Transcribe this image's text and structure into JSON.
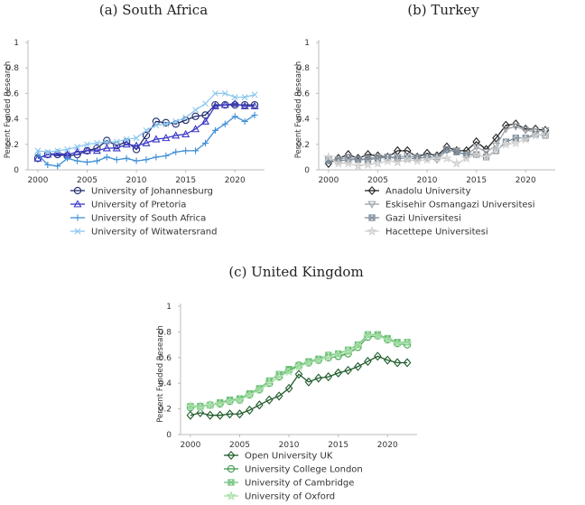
{
  "chart_data": [
    {
      "type": "line",
      "title": "(a) South Africa",
      "xlabel": "",
      "ylabel": "Percent Funded Research",
      "xlim": [
        1999,
        2023
      ],
      "ylim": [
        0,
        1
      ],
      "x_ticks": [
        2000,
        2005,
        2010,
        2015,
        2020
      ],
      "y_ticks": [
        0,
        0.2,
        0.4,
        0.6,
        0.8,
        1
      ],
      "y_tick_labels": [
        "0",
        "0.2",
        "0.4",
        "0.6",
        "0.8",
        "1"
      ],
      "grid": false,
      "legend": "bottom",
      "x": [
        2000,
        2001,
        2002,
        2003,
        2004,
        2005,
        2006,
        2007,
        2008,
        2009,
        2010,
        2011,
        2012,
        2013,
        2014,
        2015,
        2016,
        2017,
        2018,
        2019,
        2020,
        2021,
        2022
      ],
      "series": [
        {
          "name": "University of Johannesburg",
          "color": "#1f2a6b",
          "marker": "circle",
          "values": [
            0.09,
            0.12,
            0.12,
            0.11,
            0.12,
            0.15,
            0.17,
            0.23,
            0.19,
            0.22,
            0.16,
            0.27,
            0.38,
            0.37,
            0.36,
            0.39,
            0.42,
            0.43,
            0.51,
            0.51,
            0.51,
            0.51,
            0.51
          ]
        },
        {
          "name": "University of Pretoria",
          "color": "#3b38c8",
          "marker": "triangle",
          "values": [
            0.09,
            0.12,
            0.13,
            0.12,
            0.14,
            0.15,
            0.15,
            0.17,
            0.17,
            0.2,
            0.19,
            0.21,
            0.24,
            0.25,
            0.27,
            0.28,
            0.32,
            0.38,
            0.5,
            0.51,
            0.52,
            0.5,
            0.5
          ]
        },
        {
          "name": "University of South Africa",
          "color": "#3f8fd6",
          "marker": "plus",
          "values": [
            0.12,
            0.04,
            0.03,
            0.09,
            0.07,
            0.06,
            0.07,
            0.1,
            0.08,
            0.09,
            0.07,
            0.08,
            0.1,
            0.11,
            0.14,
            0.15,
            0.15,
            0.21,
            0.31,
            0.36,
            0.42,
            0.38,
            0.43
          ]
        },
        {
          "name": "University of Witwatersrand",
          "color": "#8cc7ee",
          "marker": "x",
          "values": [
            0.15,
            0.14,
            0.15,
            0.16,
            0.18,
            0.2,
            0.21,
            0.22,
            0.22,
            0.24,
            0.25,
            0.31,
            0.35,
            0.36,
            0.38,
            0.41,
            0.47,
            0.52,
            0.6,
            0.6,
            0.57,
            0.57,
            0.59
          ]
        }
      ]
    },
    {
      "type": "line",
      "title": "(b) Turkey",
      "xlabel": "",
      "ylabel": "Percent Funded Research",
      "xlim": [
        1999,
        2023
      ],
      "ylim": [
        0,
        1
      ],
      "x_ticks": [
        2000,
        2005,
        2010,
        2015,
        2020
      ],
      "y_ticks": [
        0,
        0.2,
        0.4,
        0.6,
        0.8,
        1
      ],
      "y_tick_labels": [
        "0",
        "0.2",
        "0.4",
        "0.6",
        "0.8",
        "1"
      ],
      "grid": false,
      "legend": "bottom",
      "x": [
        2000,
        2001,
        2002,
        2003,
        2004,
        2005,
        2006,
        2007,
        2008,
        2009,
        2010,
        2011,
        2012,
        2013,
        2014,
        2015,
        2016,
        2017,
        2018,
        2019,
        2020,
        2021,
        2022
      ],
      "series": [
        {
          "name": "Anadolu University",
          "color": "#222222",
          "marker": "diamond",
          "values": [
            0.05,
            0.09,
            0.12,
            0.09,
            0.12,
            0.11,
            0.1,
            0.15,
            0.15,
            0.1,
            0.13,
            0.11,
            0.18,
            0.15,
            0.15,
            0.22,
            0.16,
            0.25,
            0.35,
            0.36,
            0.32,
            0.32,
            0.31
          ]
        },
        {
          "name": "Eskisehir Osmangazi Universitesi",
          "color": "#9aa0a6",
          "marker": "triangle-down",
          "values": [
            0.08,
            0.08,
            0.1,
            0.08,
            0.09,
            0.1,
            0.1,
            0.1,
            0.11,
            0.1,
            0.09,
            0.08,
            0.15,
            0.15,
            0.11,
            0.18,
            0.14,
            0.19,
            0.32,
            0.34,
            0.31,
            0.3,
            0.31
          ]
        },
        {
          "name": "Gazi Universitesi",
          "color": "#7d8c99",
          "marker": "square-x",
          "values": [
            0.07,
            0.07,
            0.08,
            0.08,
            0.08,
            0.09,
            0.1,
            0.09,
            0.09,
            0.09,
            0.1,
            0.1,
            0.16,
            0.14,
            0.12,
            0.12,
            0.1,
            0.15,
            0.22,
            0.25,
            0.25,
            0.28,
            0.27
          ]
        },
        {
          "name": "Hacettepe Universitesi",
          "color": "#cfcfcf",
          "marker": "star",
          "values": [
            0.1,
            0.05,
            0.05,
            0.03,
            0.04,
            0.05,
            0.07,
            0.06,
            0.08,
            0.07,
            0.08,
            0.09,
            0.09,
            0.05,
            0.09,
            0.12,
            0.1,
            0.16,
            0.2,
            0.21,
            0.24,
            0.27,
            0.28
          ]
        }
      ]
    },
    {
      "type": "line",
      "title": "(c) United Kingdom",
      "xlabel": "",
      "ylabel": "Percent Funded Research",
      "xlim": [
        1999,
        2023
      ],
      "ylim": [
        0,
        1
      ],
      "x_ticks": [
        2000,
        2005,
        2010,
        2015,
        2020
      ],
      "y_ticks": [
        0,
        0.2,
        0.4,
        0.6,
        0.8,
        1
      ],
      "y_tick_labels": [
        "0",
        "0.2",
        "0.4",
        "0.6",
        "0.8",
        "1"
      ],
      "grid": false,
      "legend": "bottom",
      "x": [
        2000,
        2001,
        2002,
        2003,
        2004,
        2005,
        2006,
        2007,
        2008,
        2009,
        2010,
        2011,
        2012,
        2013,
        2014,
        2015,
        2016,
        2017,
        2018,
        2019,
        2020,
        2021,
        2022
      ],
      "series": [
        {
          "name": "Open University UK",
          "color": "#1e5a2a",
          "marker": "diamond",
          "values": [
            0.15,
            0.17,
            0.15,
            0.15,
            0.16,
            0.16,
            0.19,
            0.23,
            0.27,
            0.3,
            0.36,
            0.47,
            0.41,
            0.44,
            0.45,
            0.48,
            0.5,
            0.53,
            0.57,
            0.61,
            0.58,
            0.56,
            0.56
          ]
        },
        {
          "name": "University College London",
          "color": "#3f9a4f",
          "marker": "circle",
          "values": [
            0.21,
            0.22,
            0.23,
            0.24,
            0.26,
            0.27,
            0.31,
            0.35,
            0.4,
            0.45,
            0.5,
            0.54,
            0.56,
            0.58,
            0.6,
            0.61,
            0.63,
            0.68,
            0.76,
            0.77,
            0.74,
            0.71,
            0.7
          ]
        },
        {
          "name": "University of Cambridge",
          "color": "#6ec27a",
          "marker": "square-x",
          "values": [
            0.22,
            0.22,
            0.23,
            0.25,
            0.27,
            0.28,
            0.32,
            0.36,
            0.42,
            0.47,
            0.51,
            0.54,
            0.57,
            0.59,
            0.62,
            0.63,
            0.66,
            0.7,
            0.78,
            0.78,
            0.75,
            0.72,
            0.72
          ]
        },
        {
          "name": "University of Oxford",
          "color": "#a8e0a8",
          "marker": "star",
          "values": [
            0.22,
            0.21,
            0.23,
            0.24,
            0.26,
            0.27,
            0.31,
            0.35,
            0.4,
            0.45,
            0.49,
            0.53,
            0.56,
            0.58,
            0.6,
            0.62,
            0.64,
            0.69,
            0.77,
            0.77,
            0.74,
            0.71,
            0.71
          ]
        }
      ]
    }
  ]
}
